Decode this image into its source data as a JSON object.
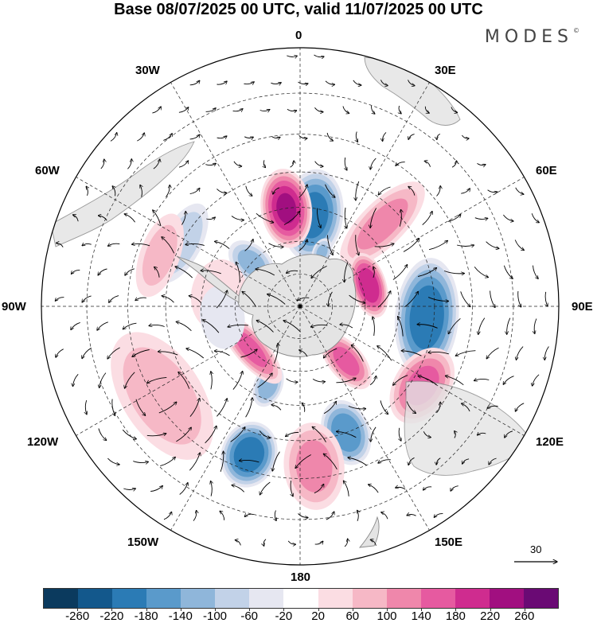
{
  "title": "Base 08/07/2025 00 UTC, valid 11/07/2025 00 UTC",
  "brand": {
    "name": "MODES",
    "mark": "©"
  },
  "projection": "polar stereographic (south pole)",
  "longitude_labels": {
    "lon_0": "0",
    "lon_30e": "30E",
    "lon_60e": "60E",
    "lon_90e": "90E",
    "lon_120e": "120E",
    "lon_150e": "150E",
    "lon_180": "180",
    "lon_150w": "150W",
    "lon_120w": "120W",
    "lon_90w": "90W",
    "lon_60w": "60W",
    "lon_30w": "30W"
  },
  "vector_scale_label": "30",
  "colorbar": {
    "colors": [
      "#0b3a5e",
      "#13588c",
      "#2b7bb5",
      "#5a9acb",
      "#8fb6da",
      "#c2d2e8",
      "#e6e7f1",
      "#ffffff",
      "#fbdde3",
      "#f6b8c6",
      "#ef87ab",
      "#e65aa0",
      "#cf2c8f",
      "#a10f80",
      "#6a0a74"
    ],
    "tick_labels": [
      "-260",
      "-220",
      "-180",
      "-140",
      "-100",
      "-60",
      "-20",
      "20",
      "60",
      "100",
      "140",
      "180",
      "220",
      "260"
    ]
  },
  "anomaly_centers": [
    {
      "name": "blue-center-atlantic",
      "lon": 8,
      "lat": -62,
      "value": -200,
      "rx": 38,
      "ry": 58
    },
    {
      "name": "magenta-center-southatlantic",
      "lon": -8,
      "lat": -60,
      "value": 220,
      "rx": 32,
      "ry": 50
    },
    {
      "name": "pink-center-southafrica",
      "lon": 45,
      "lat": -55,
      "value": 110,
      "rx": 28,
      "ry": 70
    },
    {
      "name": "magenta-center-southindian",
      "lon": 73,
      "lat": -68,
      "value": 210,
      "rx": 42,
      "ry": 22
    },
    {
      "name": "blue-center-eastindian",
      "lon": 95,
      "lat": -52,
      "value": -210,
      "rx": 75,
      "ry": 40
    },
    {
      "name": "pink-center-westaustralia",
      "lon": 123,
      "lat": -47,
      "value": 150,
      "rx": 52,
      "ry": 35
    },
    {
      "name": "pink-center-eastantarctic",
      "lon": 140,
      "lat": -68,
      "value": 150,
      "rx": 22,
      "ry": 42
    },
    {
      "name": "blue-center-tasman",
      "lon": 160,
      "lat": -50,
      "value": -170,
      "rx": 30,
      "ry": 42
    },
    {
      "name": "pink-center-newzealand",
      "lon": 175,
      "lat": -43,
      "value": 110,
      "rx": 38,
      "ry": 55
    },
    {
      "name": "blue-center-southpacific",
      "lon": -161,
      "lat": -44,
      "value": -210,
      "rx": 35,
      "ry": 42
    },
    {
      "name": "blue-center-rossbell",
      "lon": -158,
      "lat": -64,
      "value": -120,
      "rx": 18,
      "ry": 28
    },
    {
      "name": "pink-center-amundsen",
      "lon": -131,
      "lat": -70,
      "value": 150,
      "rx": 55,
      "ry": 20
    },
    {
      "name": "pink-center-eastpacific",
      "lon": -123,
      "lat": -42,
      "value": 80,
      "rx": 90,
      "ry": 50
    },
    {
      "name": "blue-center-southamerica",
      "lon": -62,
      "lat": -50,
      "value": -90,
      "rx": 55,
      "ry": 25
    },
    {
      "name": "pink-center-westsouthamerica",
      "lon": -70,
      "lat": -46,
      "value": 70,
      "rx": 55,
      "ry": 25
    },
    {
      "name": "pink-center-drakepassage",
      "lon": -60,
      "lat": -68,
      "value": 90,
      "rx": 20,
      "ry": 14
    },
    {
      "name": "blue-center-weddell",
      "lon": -48,
      "lat": -70,
      "value": -110,
      "rx": 22,
      "ry": 34
    },
    {
      "name": "blue-center-centralatlantic",
      "lon": 22,
      "lat": -72,
      "value": -100,
      "rx": 12,
      "ry": 18
    },
    {
      "name": "pink-center-bellingshausen",
      "lon": -82,
      "lat": -65,
      "value": 50,
      "rx": 45,
      "ry": 35
    },
    {
      "name": "blue-center-westpacific",
      "lon": -98,
      "lat": -66,
      "value": -50,
      "rx": 40,
      "ry": 28
    }
  ]
}
